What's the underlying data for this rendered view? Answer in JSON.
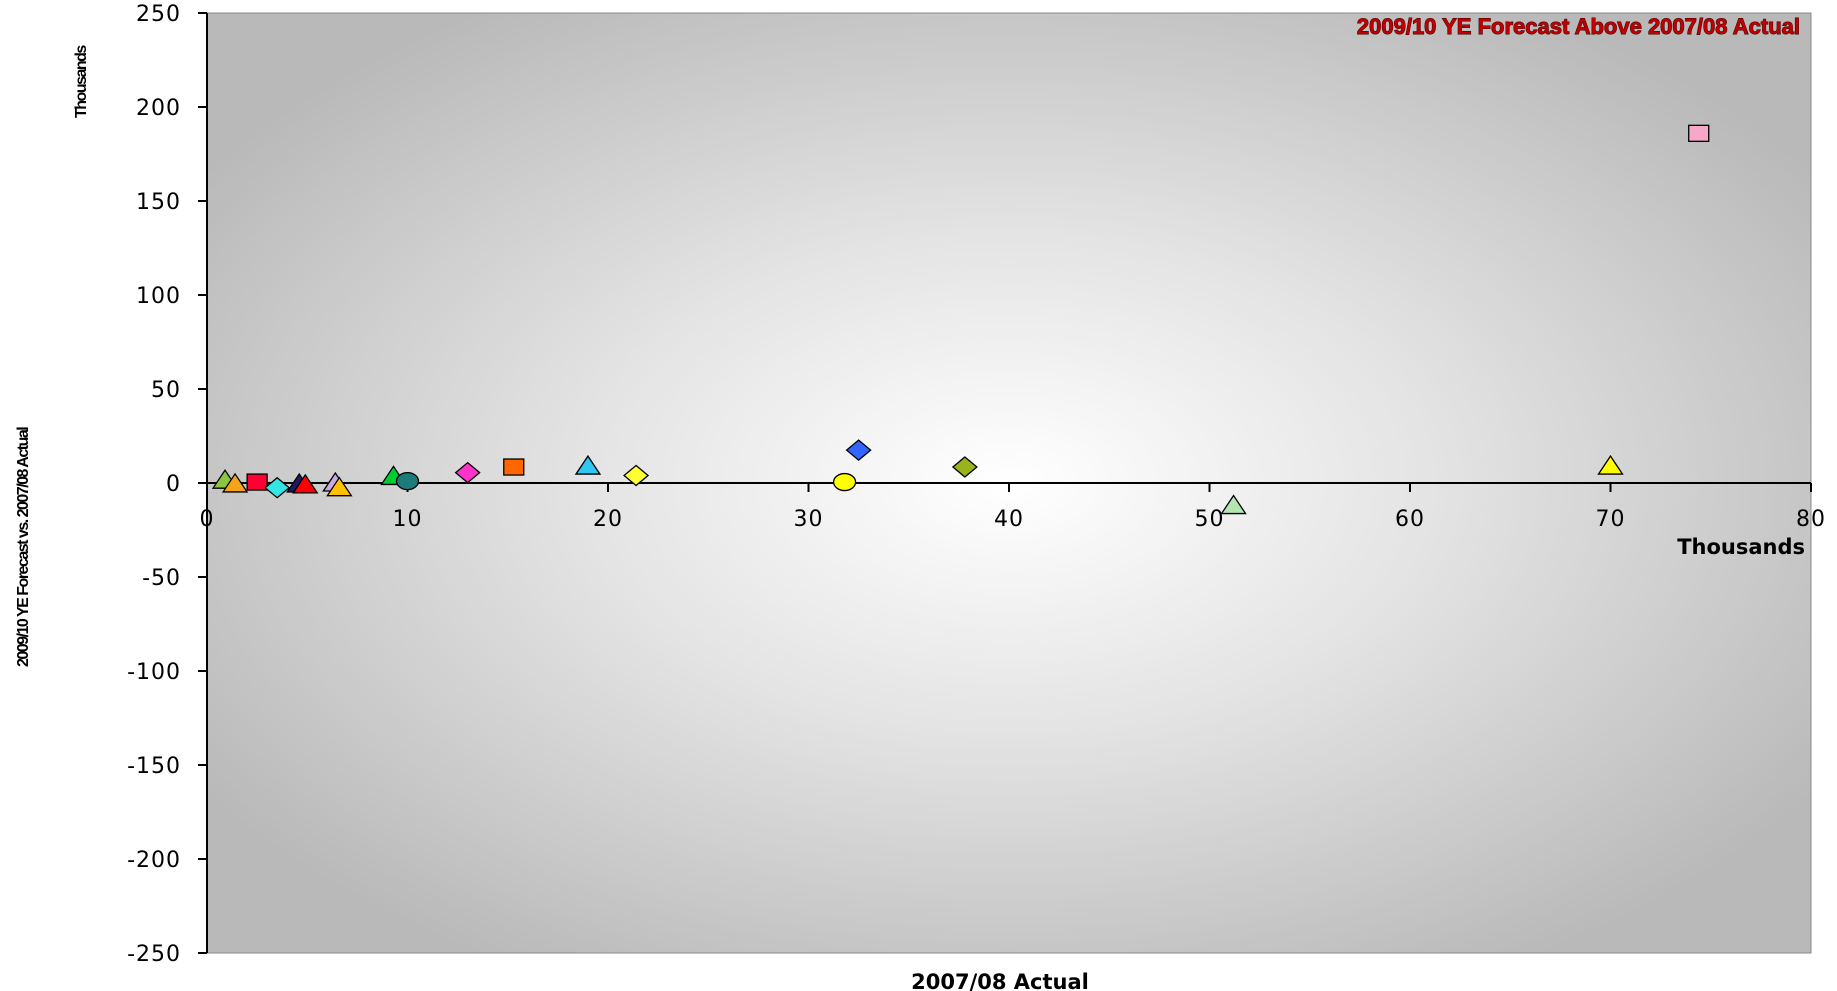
{
  "chart_data": {
    "type": "scatter",
    "title": "",
    "annotation": "2009/10 YE Forecast Above 2007/08 Actual",
    "xlabel": "2007/08 Actual",
    "ylabel": "2009/10 YE Forecast vs. 2007/08 Actual",
    "x_unit_label": "Thousands",
    "y_unit_label": "Thousands",
    "xlim": [
      0,
      80
    ],
    "ylim": [
      -250,
      250
    ],
    "x_ticks": [
      "0",
      "10",
      "20",
      "30",
      "40",
      "50",
      "60",
      "70",
      "80"
    ],
    "y_ticks": [
      "250",
      "200",
      "150",
      "100",
      "50",
      "0",
      "-50",
      "-100",
      "-150",
      "-200",
      "-250"
    ],
    "grid": false,
    "legend": "none",
    "points": [
      {
        "x": 0.9,
        "y": 1.5,
        "shape": "triangle",
        "color": "#8cc63f"
      },
      {
        "x": 1.4,
        "y": -0.5,
        "shape": "triangle",
        "color": "#f7a21b"
      },
      {
        "x": 2.5,
        "y": 0.5,
        "shape": "square",
        "color": "#ff0033"
      },
      {
        "x": 3.5,
        "y": -2.5,
        "shape": "diamond",
        "color": "#33e6e6"
      },
      {
        "x": 4.6,
        "y": -0.5,
        "shape": "triangle",
        "color": "#1a1a66"
      },
      {
        "x": 4.9,
        "y": -1.0,
        "shape": "triangle",
        "color": "#ff0000"
      },
      {
        "x": 6.4,
        "y": 0.0,
        "shape": "triangle",
        "color": "#c9a8e6"
      },
      {
        "x": 6.6,
        "y": -2.5,
        "shape": "triangle",
        "color": "#ffc000"
      },
      {
        "x": 9.3,
        "y": 3.5,
        "shape": "triangle",
        "color": "#00cc33"
      },
      {
        "x": 10.0,
        "y": 1.0,
        "shape": "circle",
        "color": "#1f7a7a"
      },
      {
        "x": 13.0,
        "y": 5.5,
        "shape": "diamond",
        "color": "#ff33cc"
      },
      {
        "x": 15.3,
        "y": 8.5,
        "shape": "square",
        "color": "#ff6600"
      },
      {
        "x": 19.0,
        "y": 9.0,
        "shape": "triangle",
        "color": "#33c6f0"
      },
      {
        "x": 21.4,
        "y": 4.0,
        "shape": "diamond",
        "color": "#ffff33"
      },
      {
        "x": 31.8,
        "y": 0.5,
        "shape": "circle",
        "color": "#ffff00"
      },
      {
        "x": 32.5,
        "y": 17.5,
        "shape": "diamond",
        "color": "#3366ff"
      },
      {
        "x": 37.8,
        "y": 8.5,
        "shape": "diamond",
        "color": "#99b31a"
      },
      {
        "x": 51.2,
        "y": -12.0,
        "shape": "triangle",
        "color": "#b3e6b3"
      },
      {
        "x": 70.0,
        "y": 9.0,
        "shape": "triangle",
        "color": "#ffff00"
      },
      {
        "x": 74.4,
        "y": 186.0,
        "shape": "square",
        "color": "#f7a8c8"
      }
    ]
  }
}
